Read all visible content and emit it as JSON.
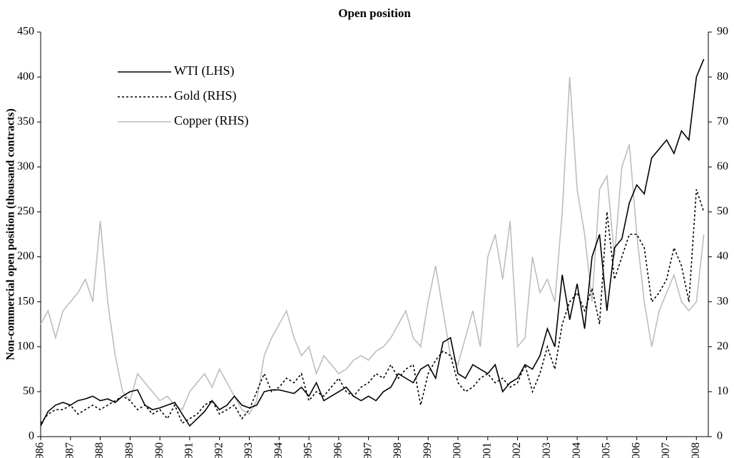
{
  "chart_data": {
    "type": "line",
    "title": "Open position",
    "y_label": "Non-commercial open position (thousand contracts)",
    "x": [
      1986,
      1986.25,
      1986.5,
      1986.75,
      1987,
      1987.25,
      1987.5,
      1987.75,
      1988,
      1988.25,
      1988.5,
      1988.75,
      1989,
      1989.25,
      1989.5,
      1989.75,
      1990,
      1990.25,
      1990.5,
      1990.75,
      1991,
      1991.25,
      1991.5,
      1991.75,
      1992,
      1992.25,
      1992.5,
      1992.75,
      1993,
      1993.25,
      1993.5,
      1993.75,
      1994,
      1994.25,
      1994.5,
      1994.75,
      1995,
      1995.25,
      1995.5,
      1995.75,
      1996,
      1996.25,
      1996.5,
      1996.75,
      1997,
      1997.25,
      1997.5,
      1997.75,
      1998,
      1998.25,
      1998.5,
      1998.75,
      1999,
      1999.25,
      1999.5,
      1999.75,
      2000,
      2000.25,
      2000.5,
      2000.75,
      2001,
      2001.25,
      2001.5,
      2001.75,
      2002,
      2002.25,
      2002.5,
      2002.75,
      2003,
      2003.25,
      2003.5,
      2003.75,
      2004,
      2004.25,
      2004.5,
      2004.75,
      2005,
      2005.25,
      2005.5,
      2005.75,
      2006,
      2006.25,
      2006.5,
      2006.75,
      2007,
      2007.25,
      2007.5,
      2007.75,
      2008,
      2008.25
    ],
    "series": [
      {
        "name": "WTI (LHS)",
        "color": "#000000",
        "dash": "solid",
        "axis": "y",
        "values": [
          12,
          28,
          35,
          38,
          35,
          40,
          42,
          45,
          40,
          42,
          38,
          45,
          50,
          52,
          35,
          30,
          32,
          35,
          38,
          25,
          12,
          20,
          28,
          40,
          30,
          35,
          45,
          35,
          32,
          35,
          50,
          52,
          52,
          50,
          48,
          55,
          45,
          60,
          40,
          45,
          50,
          55,
          45,
          40,
          45,
          40,
          50,
          55,
          70,
          65,
          60,
          75,
          80,
          65,
          105,
          110,
          70,
          65,
          80,
          75,
          70,
          80,
          50,
          60,
          65,
          80,
          75,
          90,
          120,
          100,
          180,
          130,
          170,
          120,
          200,
          225,
          140,
          210,
          220,
          260,
          280,
          270,
          310,
          320,
          330,
          315,
          340,
          330,
          400,
          420
        ]
      },
      {
        "name": "Gold (RHS)",
        "color": "#000000",
        "dash": "dotted",
        "axis": "y2",
        "values": [
          3,
          5,
          6,
          6,
          7,
          5,
          6,
          7,
          6,
          7,
          8,
          9,
          8,
          6,
          7,
          5,
          6,
          4,
          7,
          3,
          4,
          5,
          7,
          8,
          5,
          6,
          7,
          4,
          6,
          10,
          14,
          10,
          11,
          13,
          12,
          14,
          8,
          10,
          9,
          11,
          13,
          10,
          9,
          11,
          12,
          14,
          13,
          16,
          13,
          15,
          16,
          7,
          14,
          17,
          19,
          18,
          12,
          10,
          11,
          13,
          14,
          12,
          13,
          11,
          12,
          16,
          10,
          14,
          20,
          15,
          25,
          30,
          32,
          28,
          33,
          25,
          50,
          35,
          40,
          45,
          45,
          42,
          30,
          32,
          35,
          42,
          38,
          30,
          55,
          50
        ]
      },
      {
        "name": "Copper (RHS)",
        "color": "#bdbdbd",
        "dash": "solid",
        "axis": "y2",
        "values": [
          25,
          28,
          22,
          28,
          30,
          32,
          35,
          30,
          48,
          30,
          18,
          10,
          8,
          14,
          12,
          10,
          8,
          9,
          7,
          6,
          10,
          12,
          14,
          11,
          15,
          12,
          9,
          6,
          5,
          8,
          18,
          22,
          25,
          28,
          22,
          18,
          20,
          14,
          18,
          16,
          14,
          15,
          17,
          18,
          17,
          19,
          20,
          22,
          25,
          28,
          22,
          20,
          30,
          38,
          28,
          18,
          16,
          22,
          28,
          20,
          40,
          45,
          35,
          48,
          20,
          22,
          40,
          32,
          35,
          30,
          50,
          80,
          55,
          45,
          30,
          55,
          58,
          40,
          60,
          65,
          45,
          30,
          20,
          28,
          32,
          36,
          30,
          28,
          30,
          45
        ]
      }
    ],
    "xlim": [
      1986,
      2008.4
    ],
    "xticks": [
      1986,
      1987,
      1988,
      1989,
      1990,
      1991,
      1992,
      1993,
      1994,
      1995,
      1996,
      1997,
      1998,
      1999,
      2000,
      2001,
      2002,
      2003,
      2004,
      2005,
      2006,
      2007,
      2008
    ],
    "ylim": [
      0,
      450
    ],
    "yticks": [
      0,
      50,
      100,
      150,
      200,
      250,
      300,
      350,
      400,
      450
    ],
    "y2lim": [
      0,
      90
    ],
    "y2ticks": [
      0,
      10,
      20,
      30,
      40,
      50,
      60,
      70,
      80,
      90
    ],
    "legend": "upper left"
  }
}
